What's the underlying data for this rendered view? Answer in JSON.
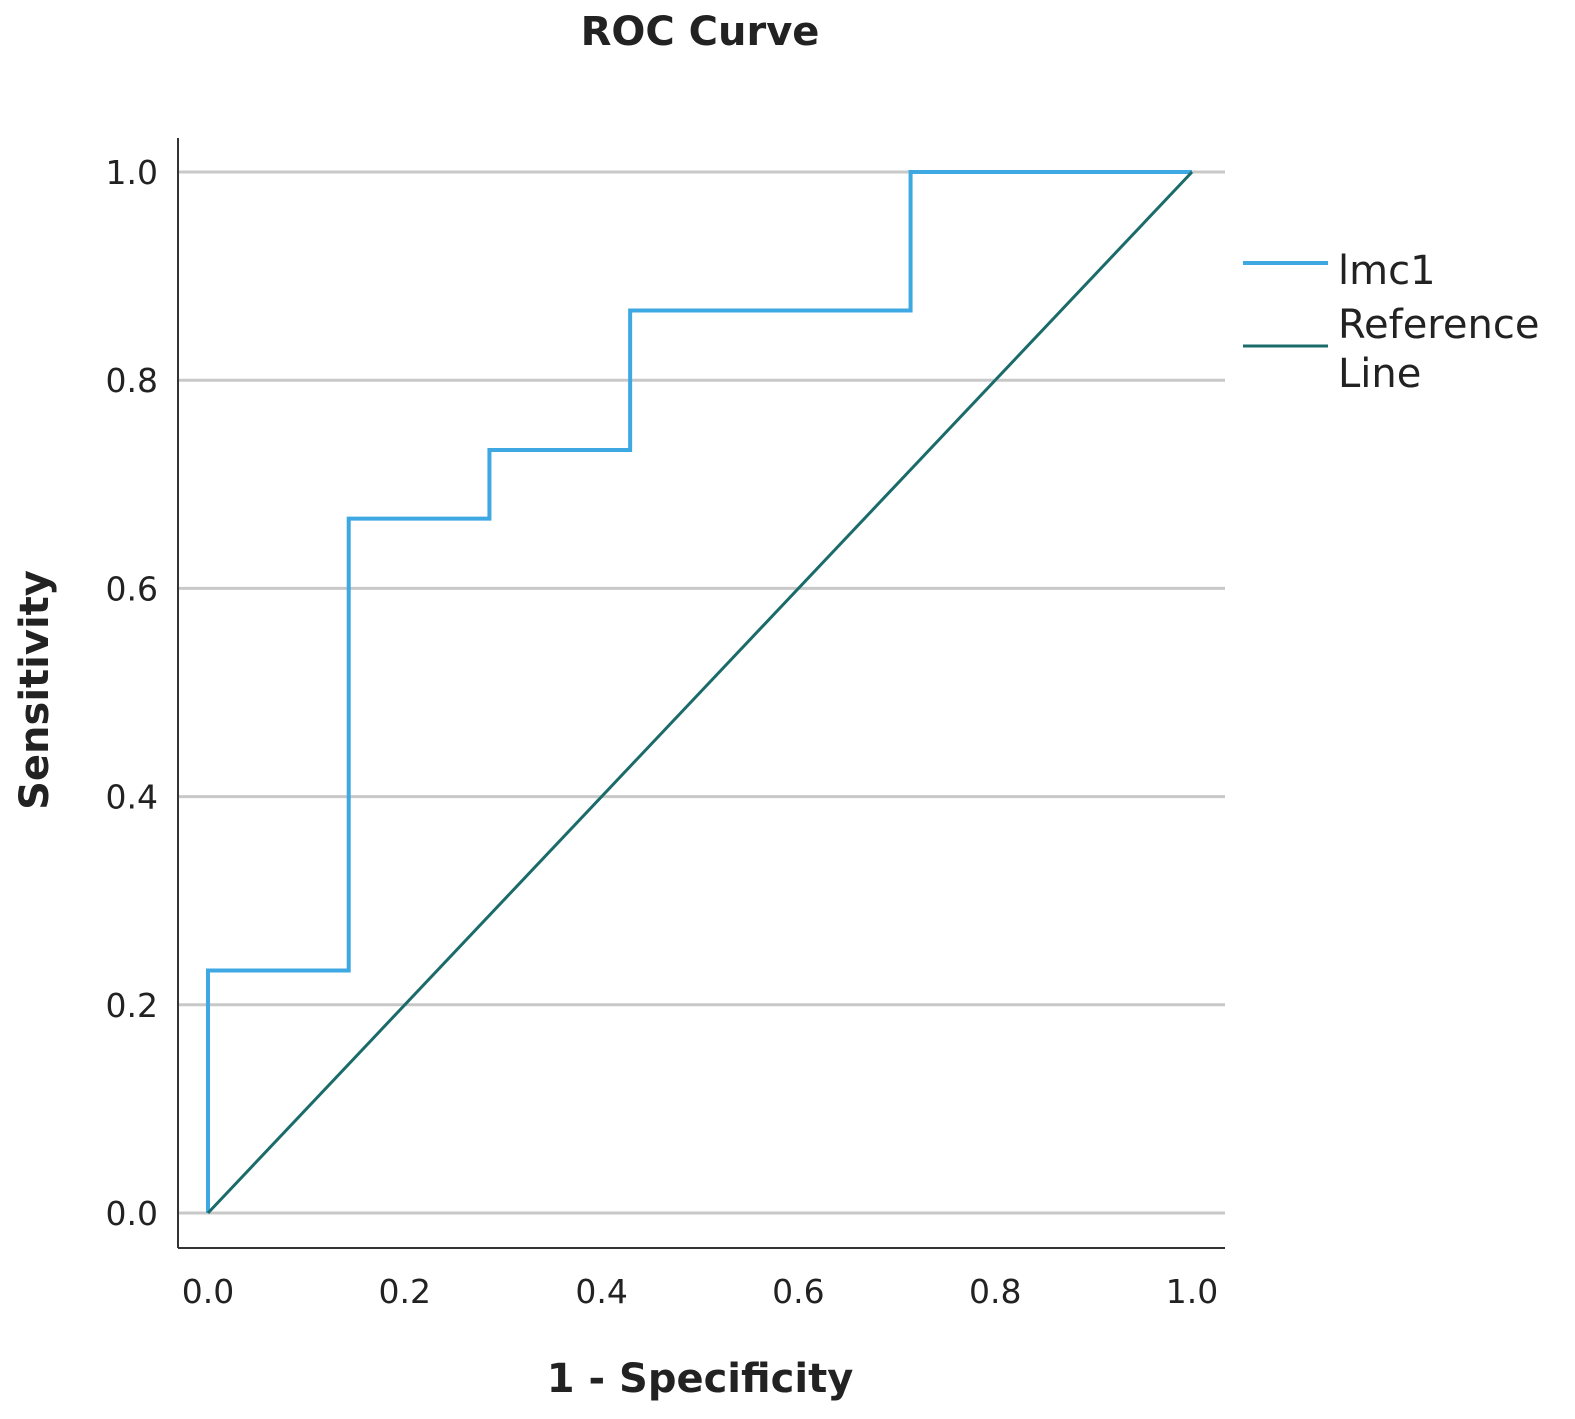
{
  "chart_data": {
    "type": "line",
    "title": "ROC Curve",
    "xlabel": "1 - Specificity",
    "ylabel": "Sensitivity",
    "xlim": [
      0,
      1
    ],
    "ylim": [
      0,
      1
    ],
    "x_ticks": [
      "0.0",
      "0.2",
      "0.4",
      "0.6",
      "0.8",
      "1.0"
    ],
    "y_ticks": [
      "0.0",
      "0.2",
      "0.4",
      "0.6",
      "0.8",
      "1.0"
    ],
    "grid": "horizontal",
    "legend_position": "right",
    "series": [
      {
        "name": "lmc1",
        "color": "#3ea8e3",
        "x": [
          0,
          0,
          0.143,
          0.143,
          0.286,
          0.286,
          0.429,
          0.429,
          0.714,
          0.714,
          1.0
        ],
        "y": [
          0,
          0.233,
          0.233,
          0.667,
          0.667,
          0.733,
          0.733,
          0.867,
          0.867,
          1.0,
          1.0
        ]
      },
      {
        "name": "Reference Line",
        "legend_lines": [
          "Reference",
          "Line"
        ],
        "color": "#1b6b6b",
        "x": [
          0,
          1
        ],
        "y": [
          0,
          1
        ]
      }
    ]
  }
}
